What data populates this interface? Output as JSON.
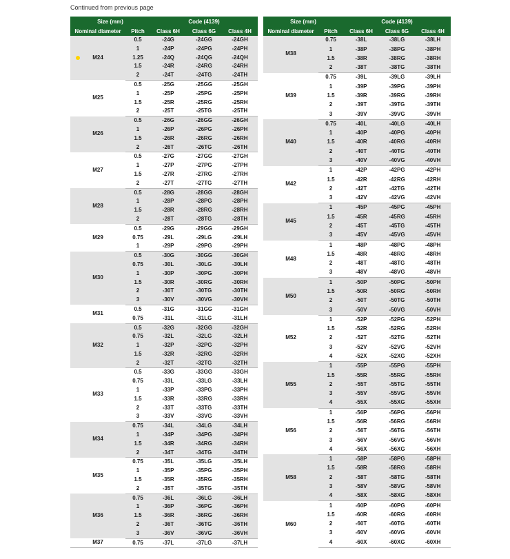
{
  "continued_text": "Continued from previous page",
  "headers": {
    "size": "Size (mm)",
    "code": "Code (4139)",
    "nominal": "Nominal diameter",
    "pitch": "Pitch",
    "c6h": "Class 6H",
    "c6g": "Class 6G",
    "c4h": "Class 4H"
  },
  "left": [
    {
      "nom": "M24",
      "dot": true,
      "shade": true,
      "rows": [
        {
          "p": "0.5",
          "a": "-24G",
          "b": "-24GG",
          "c": "-24GH"
        },
        {
          "p": "1",
          "a": "-24P",
          "b": "-24PG",
          "c": "-24PH"
        },
        {
          "p": "1.25",
          "a": "-24Q",
          "b": "-24QG",
          "c": "-24QH"
        },
        {
          "p": "1.5",
          "a": "-24R",
          "b": "-24RG",
          "c": "-24RH"
        },
        {
          "p": "2",
          "a": "-24T",
          "b": "-24TG",
          "c": "-24TH"
        }
      ]
    },
    {
      "nom": "M25",
      "shade": false,
      "rows": [
        {
          "p": "0.5",
          "a": "-25G",
          "b": "-25GG",
          "c": "-25GH"
        },
        {
          "p": "1",
          "a": "-25P",
          "b": "-25PG",
          "c": "-25PH"
        },
        {
          "p": "1.5",
          "a": "-25R",
          "b": "-25RG",
          "c": "-25RH"
        },
        {
          "p": "2",
          "a": "-25T",
          "b": "-25TG",
          "c": "-25TH"
        }
      ]
    },
    {
      "nom": "M26",
      "shade": true,
      "rows": [
        {
          "p": "0.5",
          "a": "-26G",
          "b": "-26GG",
          "c": "-26GH"
        },
        {
          "p": "1",
          "a": "-26P",
          "b": "-26PG",
          "c": "-26PH"
        },
        {
          "p": "1.5",
          "a": "-26R",
          "b": "-26RG",
          "c": "-26RH"
        },
        {
          "p": "2",
          "a": "-26T",
          "b": "-26TG",
          "c": "-26TH"
        }
      ]
    },
    {
      "nom": "M27",
      "shade": false,
      "rows": [
        {
          "p": "0.5",
          "a": "-27G",
          "b": "-27GG",
          "c": "-27GH"
        },
        {
          "p": "1",
          "a": "-27P",
          "b": "-27PG",
          "c": "-27PH"
        },
        {
          "p": "1.5",
          "a": "-27R",
          "b": "-27RG",
          "c": "-27RH"
        },
        {
          "p": "2",
          "a": "-27T",
          "b": "-27TG",
          "c": "-27TH"
        }
      ]
    },
    {
      "nom": "M28",
      "shade": true,
      "rows": [
        {
          "p": "0.5",
          "a": "-28G",
          "b": "-28GG",
          "c": "-28GH"
        },
        {
          "p": "1",
          "a": "-28P",
          "b": "-28PG",
          "c": "-28PH"
        },
        {
          "p": "1.5",
          "a": "-28R",
          "b": "-28RG",
          "c": "-28RH"
        },
        {
          "p": "2",
          "a": "-28T",
          "b": "-28TG",
          "c": "-28TH"
        }
      ]
    },
    {
      "nom": "M29",
      "shade": false,
      "rows": [
        {
          "p": "0.5",
          "a": "-29G",
          "b": "-29GG",
          "c": "-29GH"
        },
        {
          "p": "0.75",
          "a": "-29L",
          "b": "-29LG",
          "c": "-29LH"
        },
        {
          "p": "1",
          "a": "-29P",
          "b": "-29PG",
          "c": "-29PH"
        }
      ]
    },
    {
      "nom": "M30",
      "shade": true,
      "rows": [
        {
          "p": "0.5",
          "a": "-30G",
          "b": "-30GG",
          "c": "-30GH"
        },
        {
          "p": "0.75",
          "a": "-30L",
          "b": "-30LG",
          "c": "-30LH"
        },
        {
          "p": "1",
          "a": "-30P",
          "b": "-30PG",
          "c": "-30PH"
        },
        {
          "p": "1.5",
          "a": "-30R",
          "b": "-30RG",
          "c": "-30RH"
        },
        {
          "p": "2",
          "a": "-30T",
          "b": "-30TG",
          "c": "-30TH"
        },
        {
          "p": "3",
          "a": "-30V",
          "b": "-30VG",
          "c": "-30VH"
        }
      ]
    },
    {
      "nom": "M31",
      "shade": false,
      "rows": [
        {
          "p": "0.5",
          "a": "-31G",
          "b": "-31GG",
          "c": "-31GH"
        },
        {
          "p": "0.75",
          "a": "-31L",
          "b": "-31LG",
          "c": "-31LH"
        }
      ]
    },
    {
      "nom": "M32",
      "shade": true,
      "rows": [
        {
          "p": "0.5",
          "a": "-32G",
          "b": "-32GG",
          "c": "-32GH"
        },
        {
          "p": "0.75",
          "a": "-32L",
          "b": "-32LG",
          "c": "-32LH"
        },
        {
          "p": "1",
          "a": "-32P",
          "b": "-32PG",
          "c": "-32PH"
        },
        {
          "p": "1.5",
          "a": "-32R",
          "b": "-32RG",
          "c": "-32RH"
        },
        {
          "p": "2",
          "a": "-32T",
          "b": "-32TG",
          "c": "-32TH"
        }
      ]
    },
    {
      "nom": "M33",
      "shade": false,
      "rows": [
        {
          "p": "0.5",
          "a": "-33G",
          "b": "-33GG",
          "c": "-33GH"
        },
        {
          "p": "0.75",
          "a": "-33L",
          "b": "-33LG",
          "c": "-33LH"
        },
        {
          "p": "1",
          "a": "-33P",
          "b": "-33PG",
          "c": "-33PH"
        },
        {
          "p": "1.5",
          "a": "-33R",
          "b": "-33RG",
          "c": "-33RH"
        },
        {
          "p": "2",
          "a": "-33T",
          "b": "-33TG",
          "c": "-33TH"
        },
        {
          "p": "3",
          "a": "-33V",
          "b": "-33VG",
          "c": "-33VH"
        }
      ]
    },
    {
      "nom": "M34",
      "shade": true,
      "rows": [
        {
          "p": "0.75",
          "a": "-34L",
          "b": "-34LG",
          "c": "-34LH"
        },
        {
          "p": "1",
          "a": "-34P",
          "b": "-34PG",
          "c": "-34PH"
        },
        {
          "p": "1.5",
          "a": "-34R",
          "b": "-34RG",
          "c": "-34RH"
        },
        {
          "p": "2",
          "a": "-34T",
          "b": "-34TG",
          "c": "-34TH"
        }
      ]
    },
    {
      "nom": "M35",
      "shade": false,
      "rows": [
        {
          "p": "0.75",
          "a": "-35L",
          "b": "-35LG",
          "c": "-35LH"
        },
        {
          "p": "1",
          "a": "-35P",
          "b": "-35PG",
          "c": "-35PH"
        },
        {
          "p": "1.5",
          "a": "-35R",
          "b": "-35RG",
          "c": "-35RH"
        },
        {
          "p": "2",
          "a": "-35T",
          "b": "-35TG",
          "c": "-35TH"
        }
      ]
    },
    {
      "nom": "M36",
      "shade": true,
      "rows": [
        {
          "p": "0.75",
          "a": "-36L",
          "b": "-36LG",
          "c": "-36LH"
        },
        {
          "p": "1",
          "a": "-36P",
          "b": "-36PG",
          "c": "-36PH"
        },
        {
          "p": "1.5",
          "a": "-36R",
          "b": "-36RG",
          "c": "-36RH"
        },
        {
          "p": "2",
          "a": "-36T",
          "b": "-36TG",
          "c": "-36TH"
        },
        {
          "p": "3",
          "a": "-36V",
          "b": "-36VG",
          "c": "-36VH"
        }
      ]
    },
    {
      "nom": "M37",
      "shade": false,
      "rows": [
        {
          "p": "0.75",
          "a": "-37L",
          "b": "-37LG",
          "c": "-37LH"
        }
      ]
    }
  ],
  "right": [
    {
      "nom": "M38",
      "shade": true,
      "rows": [
        {
          "p": "0.75",
          "a": "-38L",
          "b": "-38LG",
          "c": "-38LH"
        },
        {
          "p": "1",
          "a": "-38P",
          "b": "-38PG",
          "c": "-38PH"
        },
        {
          "p": "1.5",
          "a": "-38R",
          "b": "-38RG",
          "c": "-38RH"
        },
        {
          "p": "2",
          "a": "-38T",
          "b": "-38TG",
          "c": "-38TH"
        }
      ]
    },
    {
      "nom": "M39",
      "shade": false,
      "rows": [
        {
          "p": "0.75",
          "a": "-39L",
          "b": "-39LG",
          "c": "-39LH"
        },
        {
          "p": "1",
          "a": "-39P",
          "b": "-39PG",
          "c": "-39PH"
        },
        {
          "p": "1.5",
          "a": "-39R",
          "b": "-39RG",
          "c": "-39RH"
        },
        {
          "p": "2",
          "a": "-39T",
          "b": "-39TG",
          "c": "-39TH"
        },
        {
          "p": "3",
          "a": "-39V",
          "b": "-39VG",
          "c": "-39VH"
        }
      ]
    },
    {
      "nom": "M40",
      "shade": true,
      "rows": [
        {
          "p": "0.75",
          "a": "-40L",
          "b": "-40LG",
          "c": "-40LH"
        },
        {
          "p": "1",
          "a": "-40P",
          "b": "-40PG",
          "c": "-40PH"
        },
        {
          "p": "1.5",
          "a": "-40R",
          "b": "-40RG",
          "c": "-40RH"
        },
        {
          "p": "2",
          "a": "-40T",
          "b": "-40TG",
          "c": "-40TH"
        },
        {
          "p": "3",
          "a": "-40V",
          "b": "-40VG",
          "c": "-40VH"
        }
      ]
    },
    {
      "nom": "M42",
      "shade": false,
      "rows": [
        {
          "p": "1",
          "a": "-42P",
          "b": "-42PG",
          "c": "-42PH"
        },
        {
          "p": "1.5",
          "a": "-42R",
          "b": "-42RG",
          "c": "-42RH"
        },
        {
          "p": "2",
          "a": "-42T",
          "b": "-42TG",
          "c": "-42TH"
        },
        {
          "p": "3",
          "a": "-42V",
          "b": "-42VG",
          "c": "-42VH"
        }
      ]
    },
    {
      "nom": "M45",
      "shade": true,
      "rows": [
        {
          "p": "1",
          "a": "-45P",
          "b": "-45PG",
          "c": "-45PH"
        },
        {
          "p": "1.5",
          "a": "-45R",
          "b": "-45RG",
          "c": "-45RH"
        },
        {
          "p": "2",
          "a": "-45T",
          "b": "-45TG",
          "c": "-45TH"
        },
        {
          "p": "3",
          "a": "-45V",
          "b": "-45VG",
          "c": "-45VH"
        }
      ]
    },
    {
      "nom": "M48",
      "shade": false,
      "rows": [
        {
          "p": "1",
          "a": "-48P",
          "b": "-48PG",
          "c": "-48PH"
        },
        {
          "p": "1.5",
          "a": "-48R",
          "b": "-48RG",
          "c": "-48RH"
        },
        {
          "p": "2",
          "a": "-48T",
          "b": "-48TG",
          "c": "-48TH"
        },
        {
          "p": "3",
          "a": "-48V",
          "b": "-48VG",
          "c": "-48VH"
        }
      ]
    },
    {
      "nom": "M50",
      "shade": true,
      "rows": [
        {
          "p": "1",
          "a": "-50P",
          "b": "-50PG",
          "c": "-50PH"
        },
        {
          "p": "1.5",
          "a": "-50R",
          "b": "-50RG",
          "c": "-50RH"
        },
        {
          "p": "2",
          "a": "-50T",
          "b": "-50TG",
          "c": "-50TH"
        },
        {
          "p": "3",
          "a": "-50V",
          "b": "-50VG",
          "c": "-50VH"
        }
      ]
    },
    {
      "nom": "M52",
      "shade": false,
      "rows": [
        {
          "p": "1",
          "a": "-52P",
          "b": "-52PG",
          "c": "-52PH"
        },
        {
          "p": "1.5",
          "a": "-52R",
          "b": "-52RG",
          "c": "-52RH"
        },
        {
          "p": "2",
          "a": "-52T",
          "b": "-52TG",
          "c": "-52TH"
        },
        {
          "p": "3",
          "a": "-52V",
          "b": "-52VG",
          "c": "-52VH"
        },
        {
          "p": "4",
          "a": "-52X",
          "b": "-52XG",
          "c": "-52XH"
        }
      ]
    },
    {
      "nom": "M55",
      "shade": true,
      "rows": [
        {
          "p": "1",
          "a": "-55P",
          "b": "-55PG",
          "c": "-55PH"
        },
        {
          "p": "1.5",
          "a": "-55R",
          "b": "-55RG",
          "c": "-55RH"
        },
        {
          "p": "2",
          "a": "-55T",
          "b": "-55TG",
          "c": "-55TH"
        },
        {
          "p": "3",
          "a": "-55V",
          "b": "-55VG",
          "c": "-55VH"
        },
        {
          "p": "4",
          "a": "-55X",
          "b": "-55XG",
          "c": "-55XH"
        }
      ]
    },
    {
      "nom": "M56",
      "shade": false,
      "rows": [
        {
          "p": "1",
          "a": "-56P",
          "b": "-56PG",
          "c": "-56PH"
        },
        {
          "p": "1.5",
          "a": "-56R",
          "b": "-56RG",
          "c": "-56RH"
        },
        {
          "p": "2",
          "a": "-56T",
          "b": "-56TG",
          "c": "-56TH"
        },
        {
          "p": "3",
          "a": "-56V",
          "b": "-56VG",
          "c": "-56VH"
        },
        {
          "p": "4",
          "a": "-56X",
          "b": "-56XG",
          "c": "-56XH"
        }
      ]
    },
    {
      "nom": "M58",
      "shade": true,
      "rows": [
        {
          "p": "1",
          "a": "-58P",
          "b": "-58PG",
          "c": "-58PH"
        },
        {
          "p": "1.5",
          "a": "-58R",
          "b": "-58RG",
          "c": "-58RH"
        },
        {
          "p": "2",
          "a": "-58T",
          "b": "-58TG",
          "c": "-58TH"
        },
        {
          "p": "3",
          "a": "-58V",
          "b": "-58VG",
          "c": "-58VH"
        },
        {
          "p": "4",
          "a": "-58X",
          "b": "-58XG",
          "c": "-58XH"
        }
      ]
    },
    {
      "nom": "M60",
      "shade": false,
      "rows": [
        {
          "p": "1",
          "a": "-60P",
          "b": "-60PG",
          "c": "-60PH"
        },
        {
          "p": "1.5",
          "a": "-60R",
          "b": "-60RG",
          "c": "-60RH"
        },
        {
          "p": "2",
          "a": "-60T",
          "b": "-60TG",
          "c": "-60TH"
        },
        {
          "p": "3",
          "a": "-60V",
          "b": "-60VG",
          "c": "-60VH"
        },
        {
          "p": "4",
          "a": "-60X",
          "b": "-60XG",
          "c": "-60XH"
        }
      ]
    }
  ]
}
